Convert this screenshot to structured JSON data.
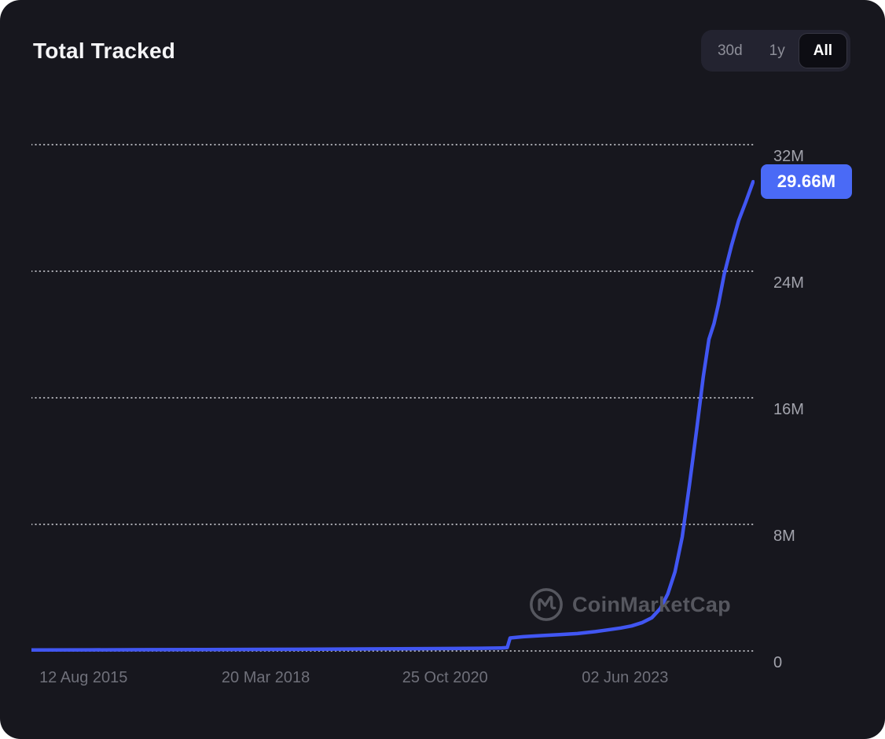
{
  "header": {
    "title": "Total Tracked"
  },
  "range_selector": {
    "options": [
      {
        "label": "30d",
        "active": false
      },
      {
        "label": "1y",
        "active": false
      },
      {
        "label": "All",
        "active": true
      }
    ]
  },
  "watermark": {
    "text": "CoinMarketCap"
  },
  "colors": {
    "card_bg": "#17171e",
    "line": "#4156f2",
    "badge_bg": "#4a6af6",
    "gridline": "#d3d4da"
  },
  "chart_data": {
    "type": "line",
    "title": "Total Tracked",
    "grid": "dotted horizontal",
    "legend": "none",
    "y_unit": "M",
    "ylim": [
      0,
      33.7
    ],
    "latest_value": 29.66,
    "latest_value_label": "29.66M",
    "y_ticks": [
      {
        "label": "32M",
        "value": 32
      },
      {
        "label": "24M",
        "value": 24
      },
      {
        "label": "16M",
        "value": 16
      },
      {
        "label": "8M",
        "value": 8
      },
      {
        "label": "0",
        "value": 0
      }
    ],
    "x_ticks": [
      {
        "label": "12 Aug 2015",
        "pos": 0.072
      },
      {
        "label": "20 Mar 2018",
        "pos": 0.324
      },
      {
        "label": "25 Oct 2020",
        "pos": 0.572
      },
      {
        "label": "02 Jun 2023",
        "pos": 0.821
      }
    ],
    "series": [
      {
        "name": "Total Tracked",
        "color": "#4156f2",
        "points": [
          [
            0.0,
            0.06
          ],
          [
            0.08,
            0.07
          ],
          [
            0.16,
            0.08
          ],
          [
            0.24,
            0.09
          ],
          [
            0.32,
            0.1
          ],
          [
            0.4,
            0.11
          ],
          [
            0.48,
            0.13
          ],
          [
            0.56,
            0.15
          ],
          [
            0.62,
            0.17
          ],
          [
            0.65,
            0.19
          ],
          [
            0.658,
            0.22
          ],
          [
            0.662,
            0.82
          ],
          [
            0.68,
            0.9
          ],
          [
            0.705,
            0.97
          ],
          [
            0.73,
            1.03
          ],
          [
            0.755,
            1.1
          ],
          [
            0.78,
            1.22
          ],
          [
            0.8,
            1.35
          ],
          [
            0.815,
            1.45
          ],
          [
            0.83,
            1.58
          ],
          [
            0.845,
            1.8
          ],
          [
            0.858,
            2.1
          ],
          [
            0.87,
            2.7
          ],
          [
            0.88,
            3.6
          ],
          [
            0.89,
            5.0
          ],
          [
            0.9,
            7.2
          ],
          [
            0.91,
            10.5
          ],
          [
            0.92,
            14.0
          ],
          [
            0.929,
            17.3
          ],
          [
            0.937,
            19.7
          ],
          [
            0.944,
            20.7
          ],
          [
            0.95,
            21.9
          ],
          [
            0.958,
            23.8
          ],
          [
            0.968,
            25.6
          ],
          [
            0.978,
            27.2
          ],
          [
            0.988,
            28.4
          ],
          [
            0.998,
            29.66
          ]
        ]
      }
    ]
  }
}
